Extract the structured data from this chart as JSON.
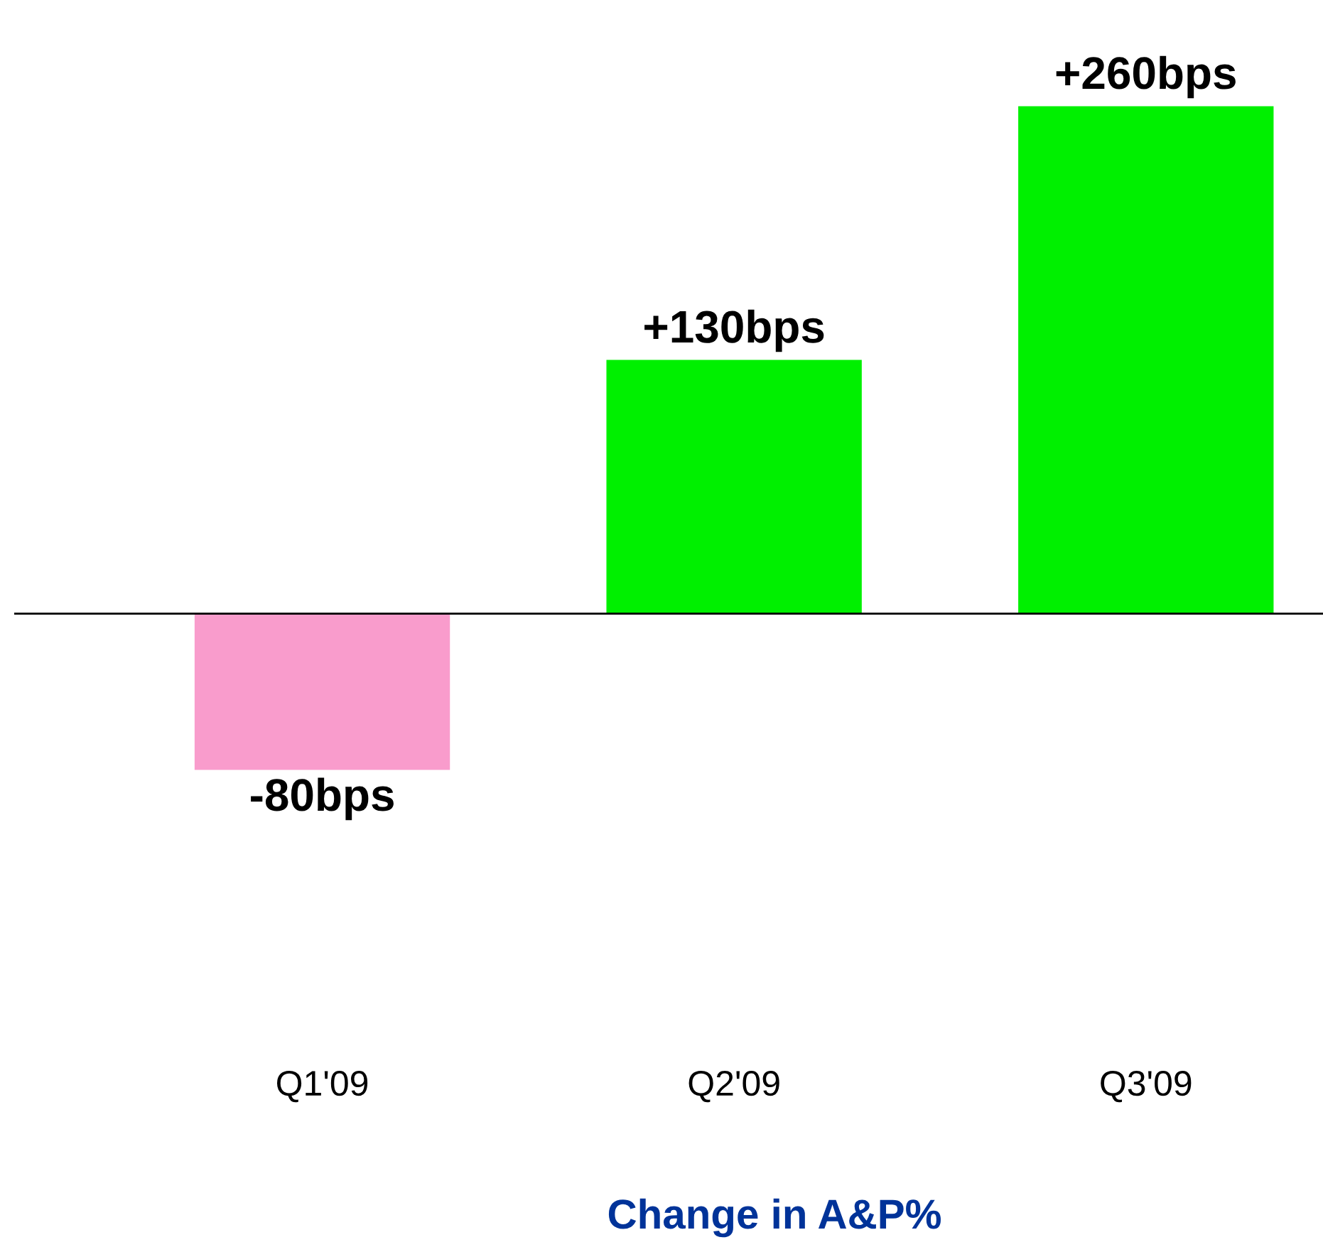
{
  "chart_data": {
    "type": "bar",
    "title": "Change in A&P%",
    "categories": [
      "Q1'09",
      "Q2'09",
      "Q3'09"
    ],
    "values": [
      -80,
      130,
      260
    ],
    "colors": [
      "#f99ccc",
      "#00f000",
      "#00f000"
    ],
    "value_labels": [
      "-80bps",
      "+130bps",
      "+260bps"
    ],
    "grid": false,
    "legend": false
  }
}
